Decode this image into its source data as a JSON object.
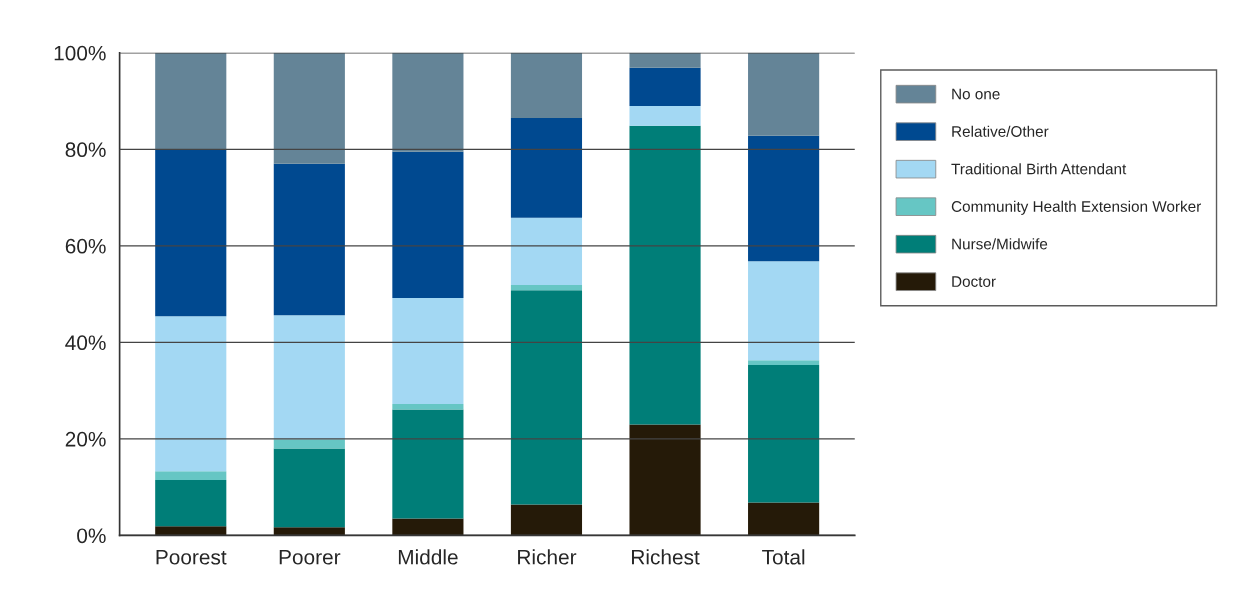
{
  "chart_data": {
    "type": "bar",
    "stacked": true,
    "categories": [
      "Poorest",
      "Poorer",
      "Middle",
      "Richer",
      "Richest",
      "Total"
    ],
    "series": [
      {
        "name": "Doctor",
        "color": "#251a08",
        "values": [
          1.9,
          1.7,
          3.5,
          6.4,
          23.0,
          6.8
        ]
      },
      {
        "name": "Nurse/Midwife",
        "color": "#007e78",
        "values": [
          9.6,
          16.3,
          22.6,
          44.4,
          61.9,
          28.5
        ]
      },
      {
        "name": "Community Health Extension Worker",
        "color": "#66c6c4",
        "values": [
          1.8,
          1.9,
          1.1,
          1.1,
          0,
          1.0
        ]
      },
      {
        "name": "Traditional Birth Attendant",
        "color": "#a3d8f3",
        "values": [
          32.1,
          25.7,
          22.0,
          13.9,
          4.1,
          20.5
        ]
      },
      {
        "name": "Relative/Other",
        "color": "#004990",
        "values": [
          34.5,
          31.4,
          30.3,
          20.7,
          7.9,
          26.0
        ]
      },
      {
        "name": "No one",
        "color": "#648497",
        "values": [
          20.1,
          23.0,
          20.5,
          13.5,
          3.1,
          17.2
        ]
      }
    ],
    "ylim": [
      0,
      100
    ],
    "yticks": [
      {
        "value": 0,
        "label": "0%"
      },
      {
        "value": 20,
        "label": "20%"
      },
      {
        "value": 40,
        "label": "40%"
      },
      {
        "value": 60,
        "label": "60%"
      },
      {
        "value": 80,
        "label": "80%"
      },
      {
        "value": 100,
        "label": "100%"
      }
    ],
    "grid": "y",
    "legend": "right"
  }
}
